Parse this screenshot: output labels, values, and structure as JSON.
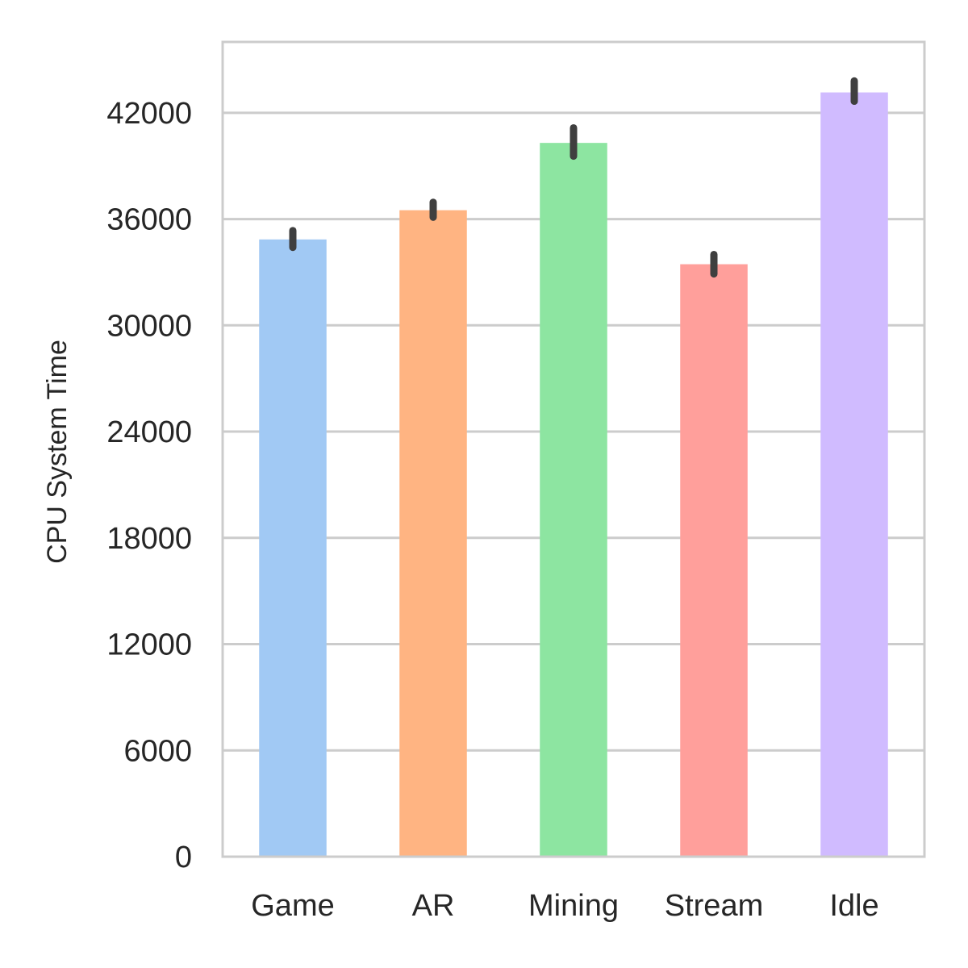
{
  "chart_data": {
    "type": "bar",
    "title": "",
    "xlabel": "",
    "ylabel": "CPU System Time",
    "categories": [
      "Game",
      "AR",
      "Mining",
      "Stream",
      "Idle"
    ],
    "values": [
      34850,
      36500,
      40300,
      33450,
      43150
    ],
    "error_bars": [
      {
        "low": 34400,
        "high": 35350
      },
      {
        "low": 36100,
        "high": 36950
      },
      {
        "low": 39550,
        "high": 41150
      },
      {
        "low": 32900,
        "high": 34000
      },
      {
        "low": 42650,
        "high": 43800
      }
    ],
    "colors": [
      "#a1c9f4",
      "#ffb482",
      "#8de5a1",
      "#ff9f9b",
      "#d0bbff"
    ],
    "error_color": "#3f3f3f",
    "ylim": [
      0,
      46000
    ],
    "yticks": [
      0,
      6000,
      12000,
      18000,
      24000,
      30000,
      36000,
      42000
    ],
    "grid": "horizontal",
    "legend": "none"
  }
}
